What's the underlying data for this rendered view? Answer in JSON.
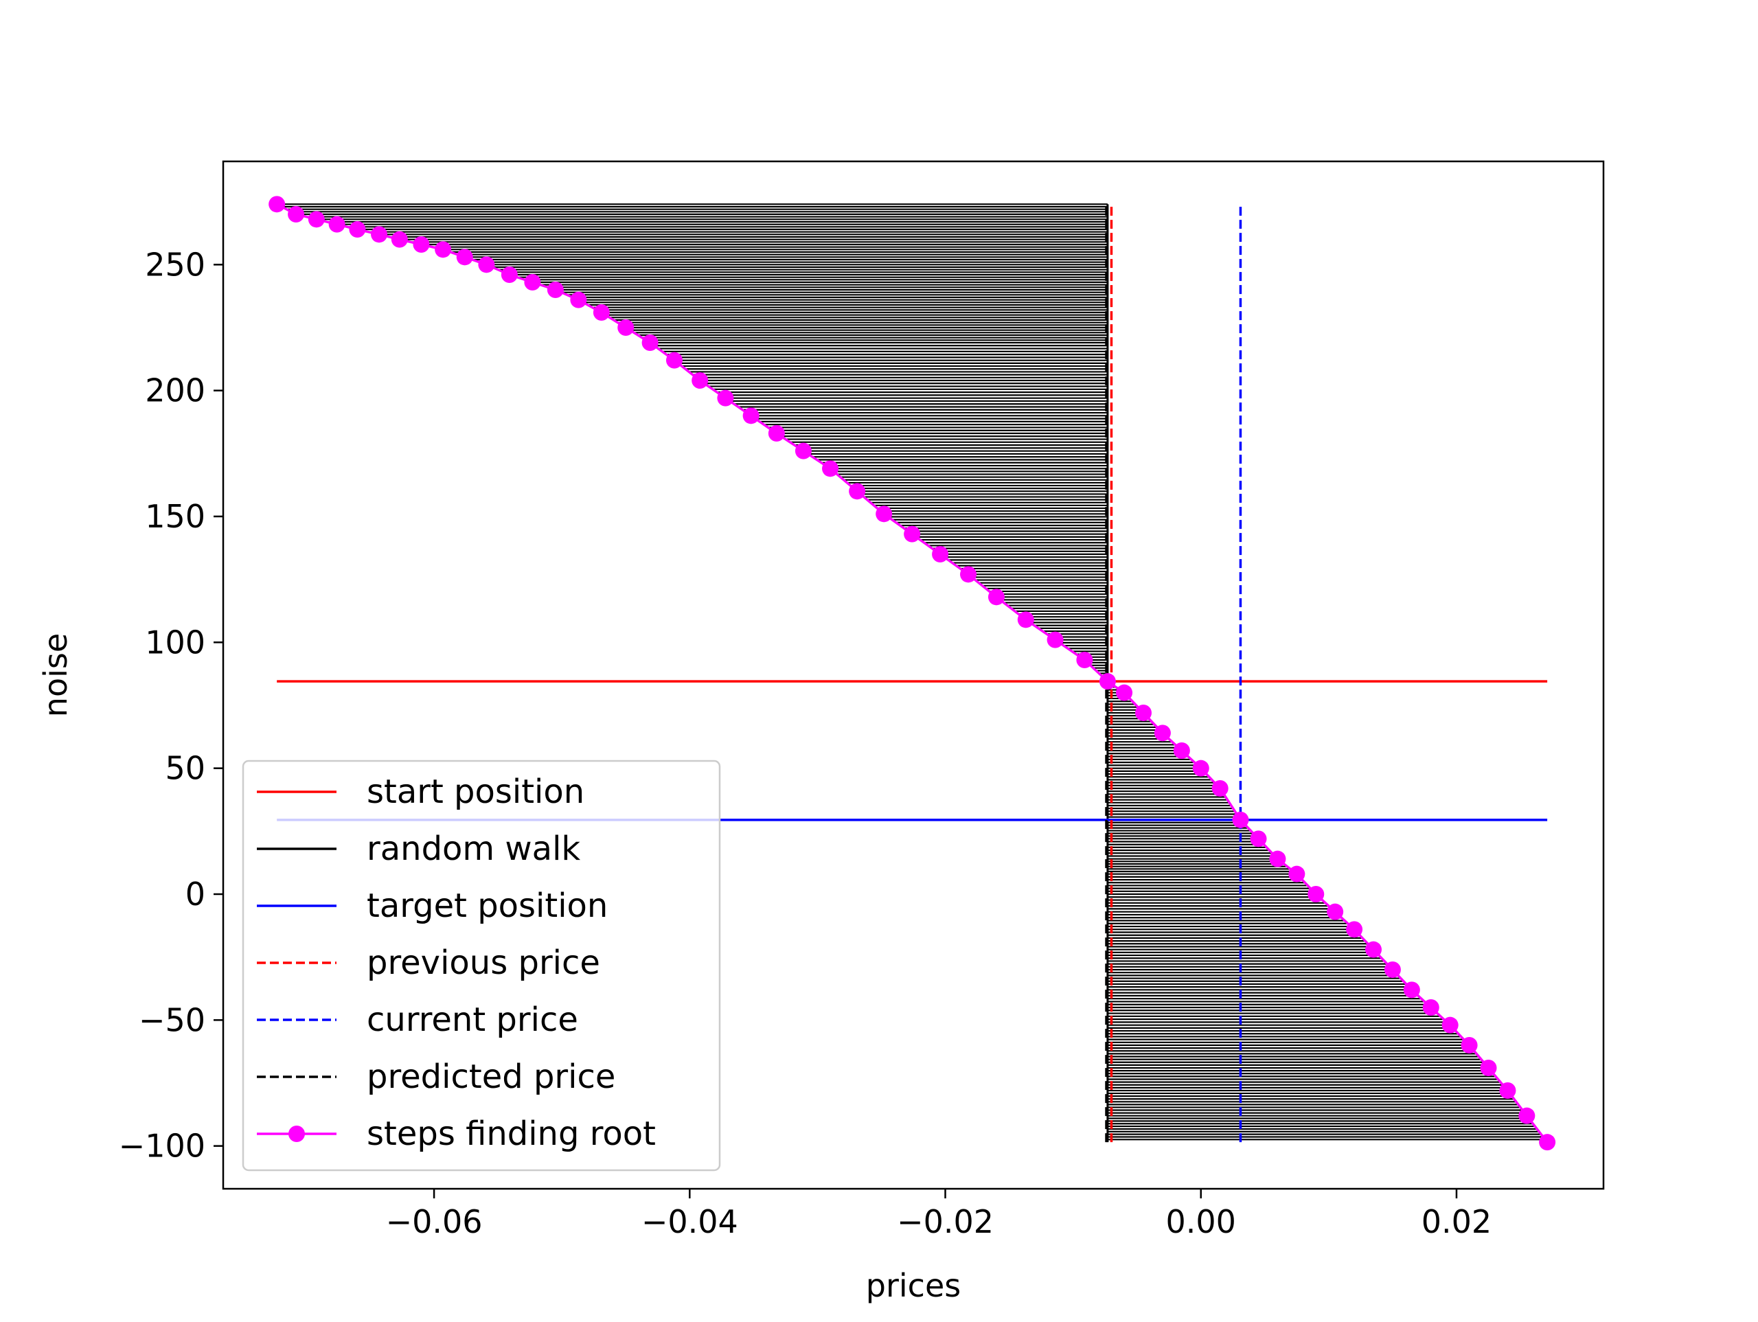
{
  "chart_data": {
    "type": "line",
    "title": "",
    "xlabel": "prices",
    "ylabel": "noise",
    "xlim": [
      -0.0765,
      0.0315
    ],
    "ylim": [
      -117,
      291
    ],
    "x_ticks": [
      {
        "value": -0.06,
        "label": "−0.06"
      },
      {
        "value": -0.04,
        "label": "−0.04"
      },
      {
        "value": -0.02,
        "label": "−0.02"
      },
      {
        "value": 0.0,
        "label": "0.00"
      },
      {
        "value": 0.02,
        "label": "0.02"
      }
    ],
    "y_ticks": [
      {
        "value": 250,
        "label": "250"
      },
      {
        "value": 200,
        "label": "200"
      },
      {
        "value": 150,
        "label": "150"
      },
      {
        "value": 100,
        "label": "100"
      },
      {
        "value": 50,
        "label": "50"
      },
      {
        "value": 0,
        "label": "0"
      },
      {
        "value": -50,
        "label": "−50"
      },
      {
        "value": -100,
        "label": "−100"
      }
    ],
    "grid": false,
    "legend_position": "lower-left",
    "colors": {
      "start": "#ff0000",
      "walk": "#000000",
      "target": "#0000ff",
      "previous": "#ff0000",
      "current": "#0000ff",
      "predicted": "#000000",
      "steps": "#ff00ff"
    },
    "series": [
      {
        "name": "start position",
        "style": "solid",
        "color": "#ff0000",
        "x": [
          -0.0723,
          0.0271
        ],
        "y": [
          84.5,
          84.5
        ]
      },
      {
        "name": "random walk",
        "style": "solid",
        "color": "#000000",
        "note_pivot_price": -0.0073
      },
      {
        "name": "target position",
        "style": "solid",
        "color": "#0000ff",
        "x": [
          -0.0723,
          0.0271
        ],
        "y": [
          29.5,
          29.5
        ]
      },
      {
        "name": "previous price",
        "style": "dashed",
        "color": "#ff0000",
        "x": [
          -0.007,
          -0.007
        ],
        "y": [
          -98.5,
          274
        ]
      },
      {
        "name": "current price",
        "style": "dashed",
        "color": "#0000ff",
        "x": [
          0.0031,
          0.0031
        ],
        "y": [
          -98.5,
          274
        ]
      },
      {
        "name": "predicted price",
        "style": "dashed",
        "color": "#000000",
        "x": [
          -0.0074,
          -0.0074
        ],
        "y": [
          -98.5,
          274
        ]
      },
      {
        "name": "steps finding root",
        "style": "solid-marker",
        "color": "#ff00ff",
        "x": [
          -0.0723,
          -0.0708,
          -0.0692,
          -0.0676,
          -0.066,
          -0.0643,
          -0.0627,
          -0.061,
          -0.0593,
          -0.0576,
          -0.0559,
          -0.0541,
          -0.0523,
          -0.0505,
          -0.0487,
          -0.0469,
          -0.045,
          -0.0431,
          -0.0412,
          -0.0392,
          -0.0372,
          -0.0352,
          -0.0332,
          -0.0311,
          -0.029,
          -0.0269,
          -0.0248,
          -0.0226,
          -0.0204,
          -0.0182,
          -0.016,
          -0.0137,
          -0.0114,
          -0.0091,
          -0.0073,
          -0.006,
          -0.0045,
          -0.003,
          -0.0015,
          0.0,
          0.0015,
          0.0031,
          0.0045,
          0.006,
          0.0075,
          0.009,
          0.0105,
          0.012,
          0.0135,
          0.015,
          0.0165,
          0.018,
          0.0195,
          0.021,
          0.0225,
          0.024,
          0.0255,
          0.0271
        ],
        "y": [
          274,
          270,
          268,
          266,
          264,
          262,
          260,
          258,
          256,
          253,
          250,
          246,
          243,
          240,
          236,
          231,
          225,
          219,
          212,
          204,
          197,
          190,
          183,
          176,
          169,
          160,
          151,
          143,
          135,
          127,
          118,
          109,
          101,
          93,
          84.5,
          80,
          72,
          64,
          57,
          50,
          42,
          29.5,
          22,
          14,
          8,
          0,
          -7,
          -14,
          -22,
          -30,
          -38,
          -45,
          -52,
          -60,
          -69,
          -78,
          -88,
          -98.5
        ]
      }
    ],
    "legend": [
      {
        "label": "start position",
        "key": "start"
      },
      {
        "label": "random walk",
        "key": "walk"
      },
      {
        "label": "target position",
        "key": "target"
      },
      {
        "label": "previous price",
        "key": "previous"
      },
      {
        "label": "current price",
        "key": "current"
      },
      {
        "label": "predicted price",
        "key": "predicted"
      },
      {
        "label": "steps finding root",
        "key": "steps"
      }
    ]
  }
}
